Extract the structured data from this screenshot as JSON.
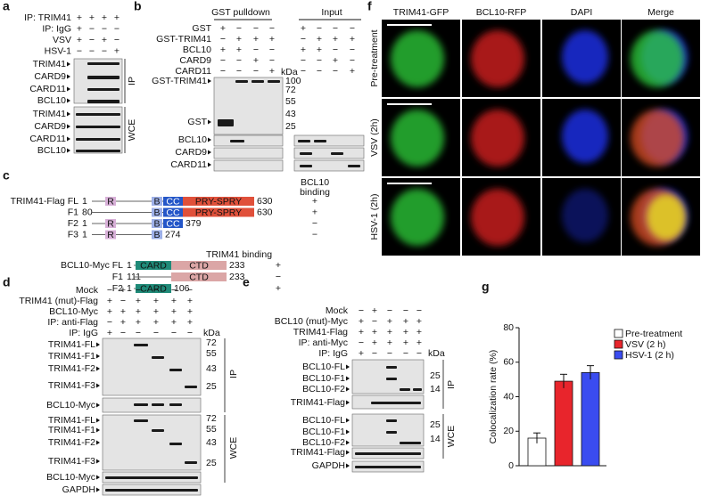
{
  "panel_a": {
    "label": "a",
    "conditions": [
      {
        "name": "IP: TRIM41",
        "signs": [
          "+",
          "+",
          "+",
          "+"
        ]
      },
      {
        "name": "IP: IgG",
        "signs": [
          "+",
          "−",
          "−",
          "−"
        ]
      },
      {
        "name": "VSV",
        "signs": [
          "+",
          "−",
          "+",
          "−"
        ]
      },
      {
        "name": "HSV-1",
        "signs": [
          "−",
          "−",
          "−",
          "+"
        ]
      }
    ],
    "bands": [
      "TRIM41",
      "CARD9",
      "CARD11",
      "BCL10",
      "TRIM41",
      "CARD9",
      "CARD11",
      "BCL10"
    ],
    "sections": [
      "IP",
      "WCE"
    ]
  },
  "panel_b": {
    "label": "b",
    "headers": [
      "GST pulldown",
      "Input"
    ],
    "conditions": [
      {
        "name": "GST",
        "signs": [
          "+",
          "−",
          "−",
          "−",
          "+",
          "−",
          "−",
          "−"
        ]
      },
      {
        "name": "GST-TRIM41",
        "signs": [
          "−",
          "+",
          "+",
          "+",
          "−",
          "+",
          "+",
          "+"
        ]
      },
      {
        "name": "BCL10",
        "signs": [
          "+",
          "+",
          "−",
          "−",
          "+",
          "+",
          "−",
          "−"
        ]
      },
      {
        "name": "CARD9",
        "signs": [
          "−",
          "−",
          "+",
          "−",
          "−",
          "−",
          "+",
          "−"
        ]
      },
      {
        "name": "CARD11",
        "signs": [
          "−",
          "−",
          "−",
          "+",
          "−",
          "−",
          "−",
          "+"
        ]
      }
    ],
    "kda": "kDa",
    "markers": [
      "100",
      "72",
      "55",
      "43",
      "25"
    ],
    "bands": [
      "GST-TRIM41",
      "GST",
      "BCL10",
      "CARD9",
      "CARD11"
    ]
  },
  "panel_c": {
    "label": "c",
    "trim41_header": [
      "BCL10",
      "binding"
    ],
    "trim41": [
      {
        "name": "TRIM41-Flag FL",
        "start": "1",
        "domains": [
          "R",
          "B",
          "CC",
          "PRY-SPRY"
        ],
        "end": "630",
        "binding": "+"
      },
      {
        "name": "F1",
        "start": "80",
        "domains": [
          "B",
          "CC",
          "PRY-SPRY"
        ],
        "end": "630",
        "binding": "+"
      },
      {
        "name": "F2",
        "start": "1",
        "domains": [
          "R",
          "B",
          "CC"
        ],
        "end": "379",
        "binding": "−"
      },
      {
        "name": "F3",
        "start": "1",
        "domains": [
          "R",
          "B"
        ],
        "end": "274",
        "binding": "−"
      }
    ],
    "bcl10_header": "TRIM41 binding",
    "bcl10": [
      {
        "name": "BCL10-Myc FL",
        "start": "1",
        "domains": [
          "CARD",
          "CTD"
        ],
        "end": "233",
        "binding": "+"
      },
      {
        "name": "F1",
        "start": "111",
        "domains": [
          "CTD"
        ],
        "end": "233",
        "binding": "−"
      },
      {
        "name": "F2",
        "start": "1",
        "domains": [
          "CARD"
        ],
        "end": "106",
        "binding": "+"
      }
    ]
  },
  "panel_d": {
    "label": "d",
    "conditions": [
      {
        "name": "Mock",
        "signs": [
          "−",
          "+",
          "−",
          "−",
          "−",
          "−"
        ]
      },
      {
        "name": "TRIM41 (mut)-Flag",
        "signs": [
          "+",
          "−",
          "+",
          "+",
          "+",
          "+"
        ]
      },
      {
        "name": "BCL10-Myc",
        "signs": [
          "+",
          "+",
          "+",
          "+",
          "+",
          "+"
        ]
      },
      {
        "name": "IP: anti-Flag",
        "signs": [
          "−",
          "+",
          "+",
          "+",
          "+",
          "+"
        ]
      },
      {
        "name": "IP: IgG",
        "signs": [
          "+",
          "−",
          "−",
          "−",
          "−",
          "−"
        ]
      }
    ],
    "kda": "kDa",
    "ip_bands": [
      "TRIM41-FL",
      "TRIM41-F1",
      "TRIM41-F2",
      "TRIM41-F3",
      "BCL10-Myc"
    ],
    "ip_markers": [
      "72",
      "55",
      "43",
      "25"
    ],
    "wce_bands": [
      "TRIM41-FL",
      "TRIM41-F1",
      "TRIM41-F2",
      "TRIM41-F3",
      "BCL10-Myc",
      "GAPDH"
    ],
    "wce_markers": [
      "72",
      "55",
      "43",
      "25"
    ],
    "sections": [
      "IP",
      "WCE"
    ]
  },
  "panel_e": {
    "label": "e",
    "conditions": [
      {
        "name": "Mock",
        "signs": [
          "−",
          "+",
          "−",
          "−",
          "−"
        ]
      },
      {
        "name": "BCL10 (mut)-Myc",
        "signs": [
          "+",
          "−",
          "+",
          "+",
          "+"
        ]
      },
      {
        "name": "TRIM41-Flag",
        "signs": [
          "+",
          "+",
          "+",
          "+",
          "+"
        ]
      },
      {
        "name": "IP: anti-Myc",
        "signs": [
          "−",
          "+",
          "+",
          "+",
          "+"
        ]
      },
      {
        "name": "IP: IgG",
        "signs": [
          "+",
          "−",
          "−",
          "−",
          "−"
        ]
      }
    ],
    "kda": "kDa",
    "ip_bands": [
      "BCL10-FL",
      "BCL10-F1",
      "BCL10-F2",
      "TRIM41-Flag"
    ],
    "ip_markers": [
      "25",
      "14"
    ],
    "wce_bands": [
      "BCL10-FL",
      "BCL10-F1",
      "BCL10-F2",
      "TRIM41-Flag",
      "GAPDH"
    ],
    "wce_markers": [
      "25",
      "14"
    ],
    "sections": [
      "IP",
      "WCE"
    ]
  },
  "panel_f": {
    "label": "f",
    "columns": [
      "TRIM41-GFP",
      "BCL10-RFP",
      "DAPI",
      "Merge"
    ],
    "rows": [
      "Pre-treatment",
      "VSV (2h)",
      "HSV-1 (2h)"
    ]
  },
  "panel_g": {
    "label": "g"
  },
  "chart_data": {
    "type": "bar",
    "y_label": "Colocalization rate (%)",
    "categories": [
      "Pre-treatment",
      "VSV (2 h)",
      "HSV-1 (2 h)"
    ],
    "values": [
      16,
      49,
      54
    ],
    "errors": [
      3,
      4,
      4
    ],
    "colors": [
      "#ffffff",
      "#e8252c",
      "#3a4cf0"
    ],
    "ylim": [
      0,
      80
    ],
    "yticks": [
      0,
      20,
      40,
      60,
      80
    ]
  }
}
